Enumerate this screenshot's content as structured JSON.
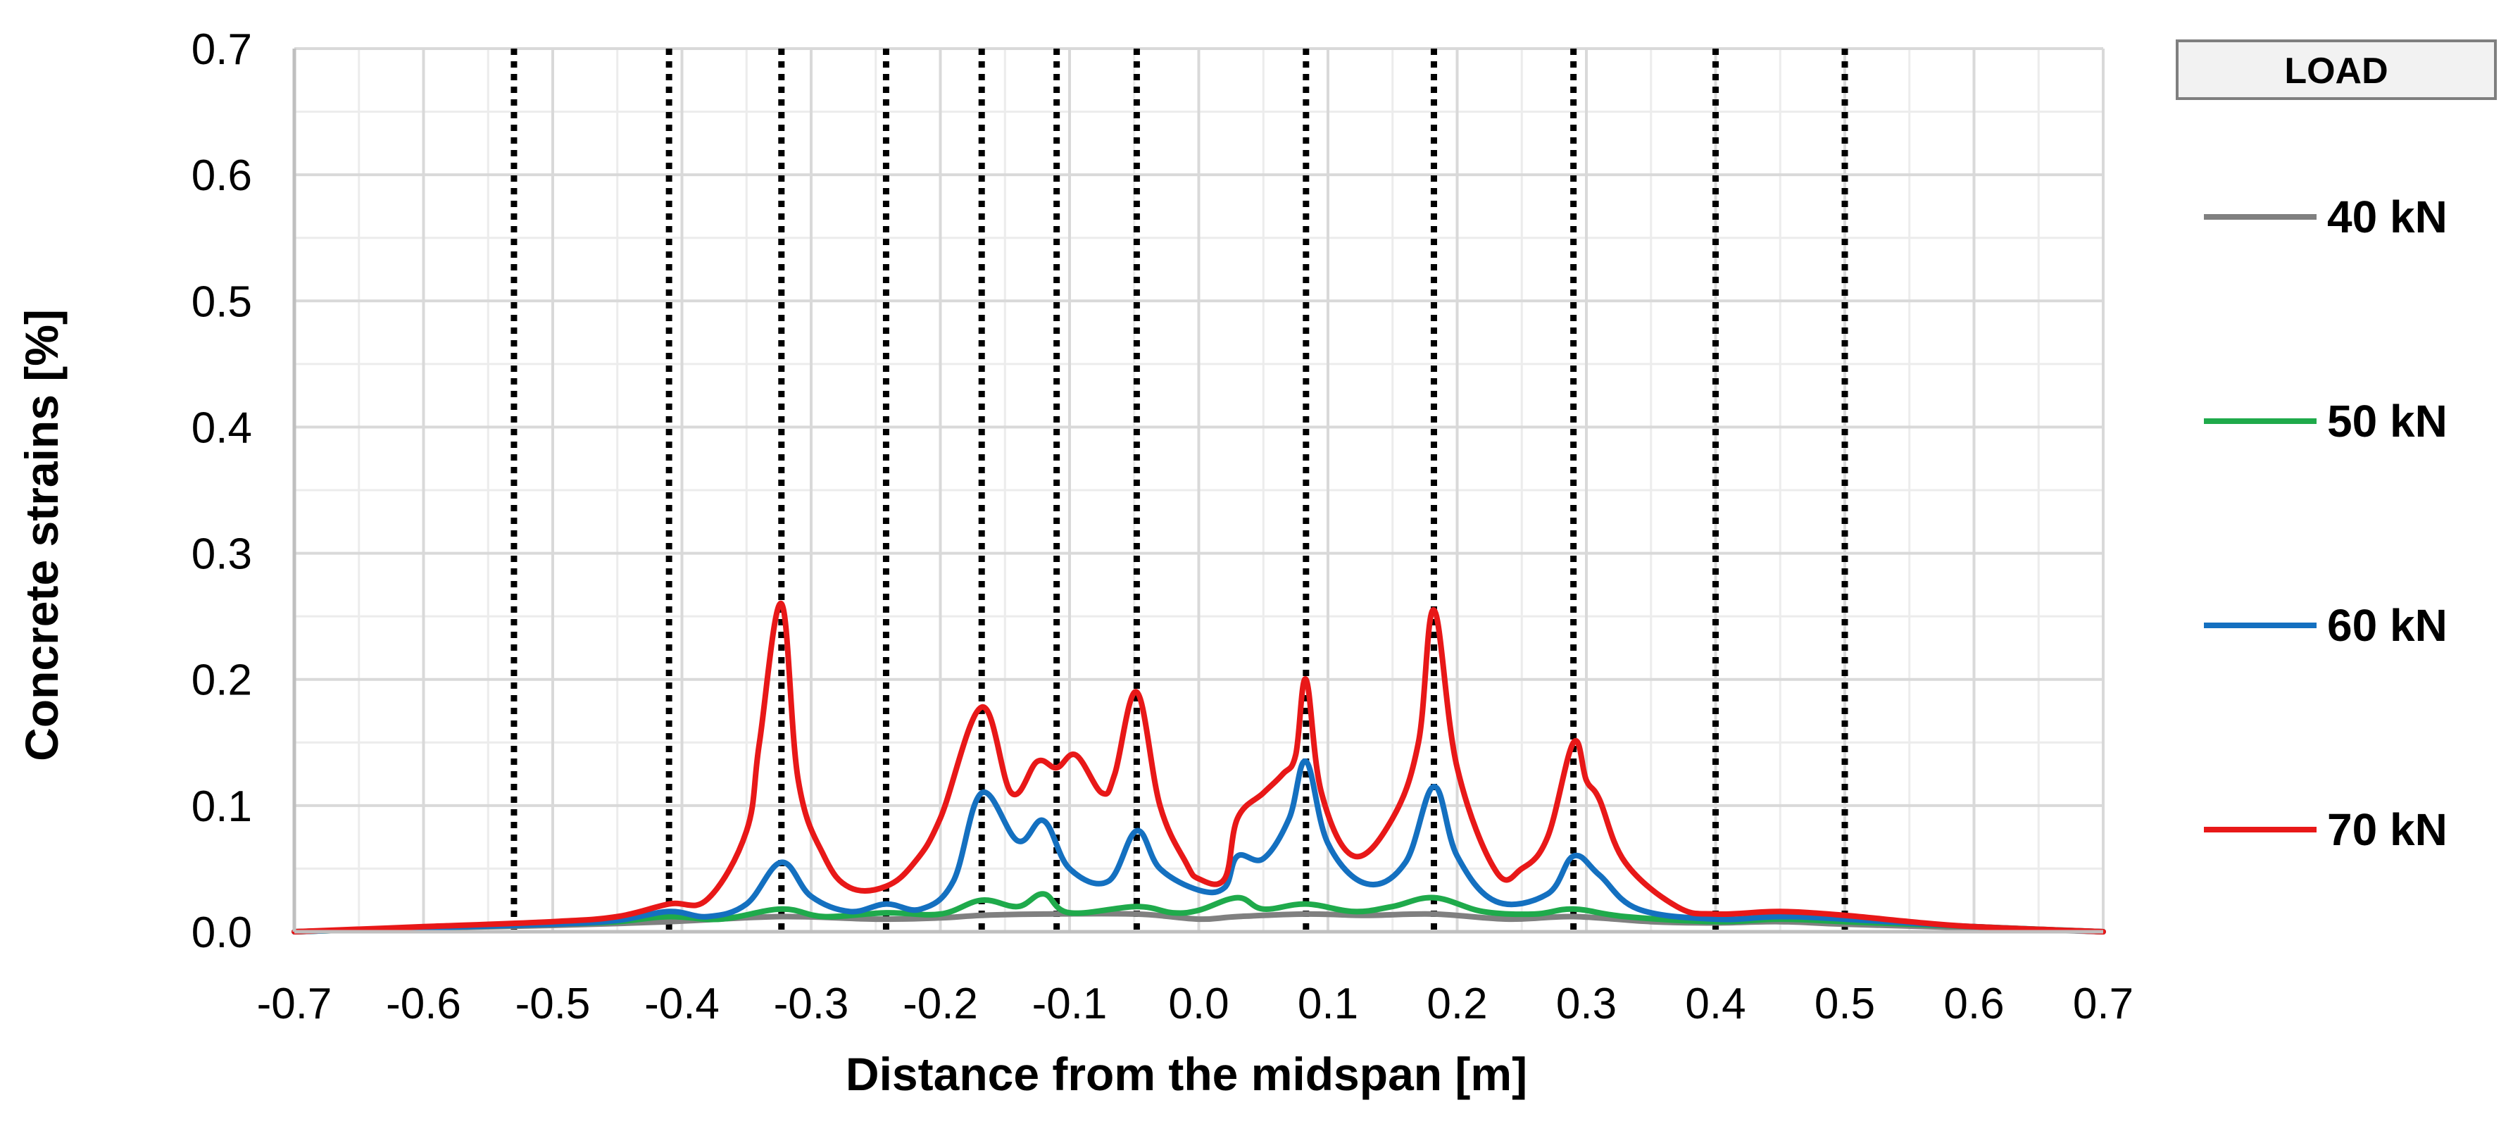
{
  "chart_data": {
    "type": "line",
    "title": "",
    "xlabel": "Distance from the midspan [m]",
    "ylabel": "Concrete strains [%]",
    "xlim": [
      -0.7,
      0.7
    ],
    "ylim": [
      0,
      0.7
    ],
    "x_ticks": [
      -0.7,
      -0.6,
      -0.5,
      -0.4,
      -0.3,
      -0.2,
      -0.1,
      0.0,
      0.1,
      0.2,
      0.3,
      0.4,
      0.5,
      0.6,
      0.7
    ],
    "x_tick_labels": [
      "-0.7",
      "-0.6",
      "-0.5",
      "-0.4",
      "-0.3",
      "-0.2",
      "-0.1",
      "0.0",
      "0.1",
      "0.2",
      "0.3",
      "0.4",
      "0.5",
      "0.6",
      "0.7"
    ],
    "y_ticks": [
      0.0,
      0.1,
      0.2,
      0.3,
      0.4,
      0.5,
      0.6,
      0.7
    ],
    "y_tick_labels": [
      "0.0",
      "0.1",
      "0.2",
      "0.3",
      "0.4",
      "0.5",
      "0.6",
      "0.7"
    ],
    "minor_grid_step_x": 0.05,
    "minor_grid_step_y": 0.05,
    "grid": true,
    "crack_lines_x": [
      -0.53,
      -0.41,
      -0.323,
      -0.242,
      -0.168,
      -0.11,
      -0.048,
      0.083,
      0.182,
      0.29,
      0.4,
      0.5
    ],
    "legend": {
      "title": "LOAD",
      "position": "right"
    },
    "series": [
      {
        "name": "40 kN",
        "color": "#808080",
        "x": [
          -0.7,
          -0.6,
          -0.5,
          -0.41,
          -0.323,
          -0.25,
          -0.2,
          -0.168,
          -0.12,
          -0.048,
          0.0,
          0.03,
          0.083,
          0.13,
          0.182,
          0.24,
          0.29,
          0.35,
          0.4,
          0.45,
          0.5,
          0.6,
          0.7
        ],
        "y": [
          0.0,
          0.003,
          0.005,
          0.008,
          0.012,
          0.01,
          0.011,
          0.013,
          0.014,
          0.014,
          0.01,
          0.012,
          0.014,
          0.013,
          0.014,
          0.01,
          0.012,
          0.008,
          0.007,
          0.008,
          0.006,
          0.003,
          0.0
        ]
      },
      {
        "name": "50 kN",
        "color": "#1faa4b",
        "x": [
          -0.7,
          -0.6,
          -0.5,
          -0.45,
          -0.41,
          -0.37,
          -0.323,
          -0.29,
          -0.242,
          -0.2,
          -0.168,
          -0.14,
          -0.12,
          -0.1,
          -0.048,
          -0.02,
          0.0,
          0.03,
          0.05,
          0.083,
          0.12,
          0.15,
          0.182,
          0.22,
          0.26,
          0.29,
          0.33,
          0.4,
          0.45,
          0.5,
          0.6,
          0.7
        ],
        "y": [
          0.0,
          0.003,
          0.006,
          0.008,
          0.012,
          0.01,
          0.018,
          0.012,
          0.015,
          0.014,
          0.025,
          0.02,
          0.03,
          0.015,
          0.02,
          0.015,
          0.017,
          0.027,
          0.018,
          0.022,
          0.016,
          0.02,
          0.027,
          0.016,
          0.014,
          0.018,
          0.012,
          0.008,
          0.01,
          0.008,
          0.004,
          0.0
        ]
      },
      {
        "name": "60 kN",
        "color": "#1470c0",
        "x": [
          -0.7,
          -0.6,
          -0.5,
          -0.45,
          -0.41,
          -0.38,
          -0.35,
          -0.323,
          -0.3,
          -0.27,
          -0.242,
          -0.215,
          -0.19,
          -0.168,
          -0.14,
          -0.12,
          -0.1,
          -0.07,
          -0.048,
          -0.03,
          0.0,
          0.02,
          0.03,
          0.05,
          0.07,
          0.083,
          0.1,
          0.13,
          0.16,
          0.182,
          0.2,
          0.23,
          0.27,
          0.29,
          0.31,
          0.34,
          0.4,
          0.45,
          0.5,
          0.6,
          0.7
        ],
        "y": [
          0.0,
          0.003,
          0.006,
          0.009,
          0.016,
          0.012,
          0.022,
          0.055,
          0.028,
          0.016,
          0.022,
          0.018,
          0.04,
          0.11,
          0.072,
          0.088,
          0.05,
          0.04,
          0.08,
          0.05,
          0.033,
          0.035,
          0.06,
          0.058,
          0.09,
          0.135,
          0.07,
          0.038,
          0.055,
          0.115,
          0.06,
          0.024,
          0.03,
          0.06,
          0.045,
          0.018,
          0.01,
          0.012,
          0.01,
          0.004,
          0.0
        ]
      },
      {
        "name": "70 kN",
        "color": "#e81818",
        "x": [
          -0.7,
          -0.6,
          -0.5,
          -0.45,
          -0.41,
          -0.38,
          -0.35,
          -0.34,
          -0.323,
          -0.31,
          -0.29,
          -0.27,
          -0.242,
          -0.22,
          -0.2,
          -0.168,
          -0.145,
          -0.125,
          -0.11,
          -0.095,
          -0.075,
          -0.065,
          -0.048,
          -0.03,
          -0.01,
          0.0,
          0.02,
          0.03,
          0.05,
          0.065,
          0.075,
          0.083,
          0.095,
          0.12,
          0.15,
          0.17,
          0.182,
          0.2,
          0.23,
          0.25,
          0.27,
          0.29,
          0.3,
          0.31,
          0.33,
          0.37,
          0.4,
          0.45,
          0.5,
          0.55,
          0.6,
          0.7
        ],
        "y": [
          0.0,
          0.004,
          0.008,
          0.012,
          0.022,
          0.026,
          0.08,
          0.15,
          0.26,
          0.12,
          0.06,
          0.035,
          0.036,
          0.055,
          0.09,
          0.178,
          0.11,
          0.135,
          0.13,
          0.14,
          0.11,
          0.125,
          0.19,
          0.1,
          0.055,
          0.042,
          0.042,
          0.09,
          0.11,
          0.125,
          0.14,
          0.2,
          0.11,
          0.06,
          0.09,
          0.15,
          0.255,
          0.13,
          0.048,
          0.05,
          0.075,
          0.15,
          0.12,
          0.105,
          0.055,
          0.02,
          0.014,
          0.016,
          0.013,
          0.008,
          0.004,
          0.0
        ]
      }
    ]
  }
}
